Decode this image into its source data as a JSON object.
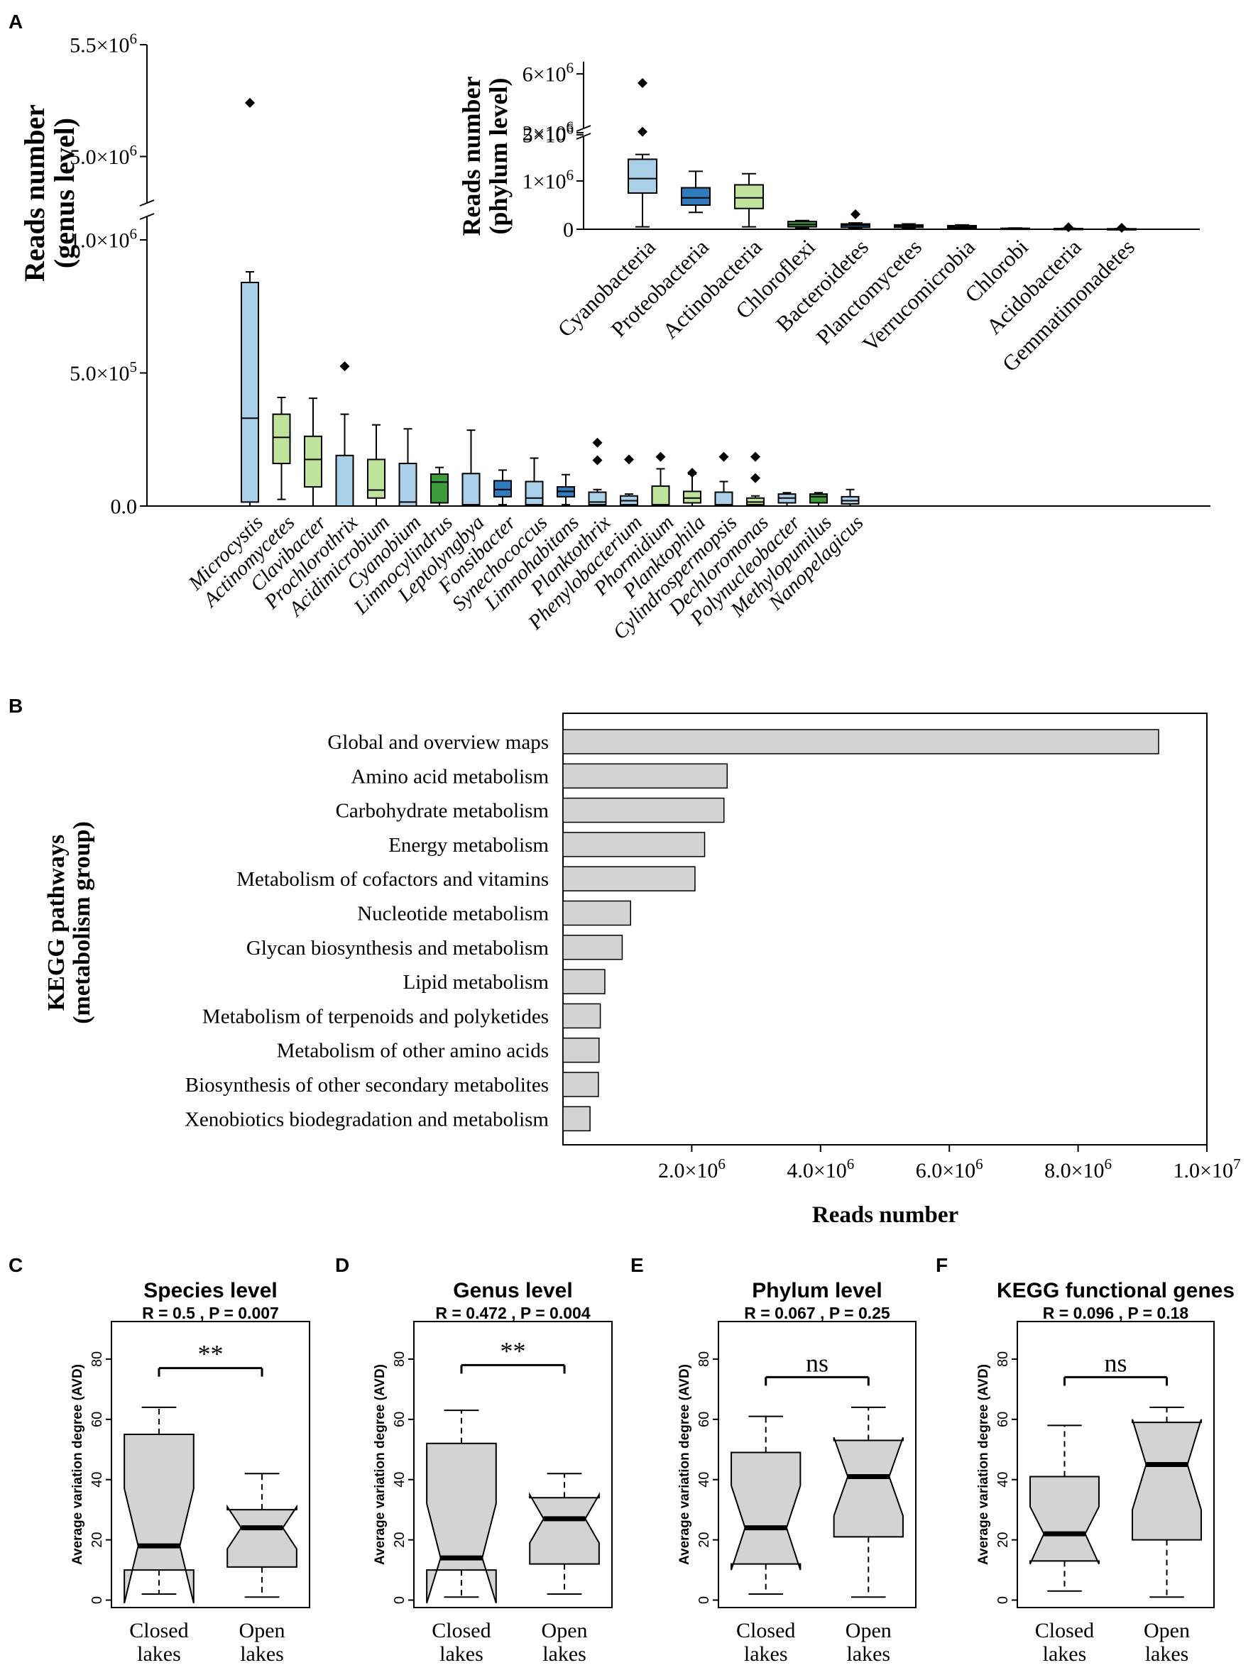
{
  "colors": {
    "light_blue": "#a9d0e8",
    "dark_blue": "#2f7bbd",
    "light_green": "#bfe39a",
    "dark_green": "#3c9c39",
    "kegg_bar": "#d3d3d3",
    "avd_box": "#d3d3d3"
  },
  "panel_letters": {
    "a": "A",
    "b": "B",
    "c": "C",
    "d": "D",
    "e": "E",
    "f": "F"
  },
  "chart_data": [
    {
      "id": "A_genus",
      "type": "box",
      "title": "",
      "ylabel_line1": "Reads number",
      "ylabel_line2": "(genus level)",
      "axis_break": true,
      "ylim_lower": [
        0,
        1000000
      ],
      "ylim_upper": [
        4900000,
        5500000
      ],
      "yticks": [
        {
          "value": 0,
          "label": "0.0",
          "seg": "lower"
        },
        {
          "value": 500000,
          "label": "5.0×10",
          "exp": "5",
          "seg": "lower"
        },
        {
          "value": 1000000,
          "label": "1.0×10",
          "exp": "6",
          "seg": "lower"
        },
        {
          "value": 5000000,
          "label": "5.0×10",
          "exp": "6",
          "seg": "upper"
        },
        {
          "value": 5500000,
          "label": "5.5×10",
          "exp": "6",
          "seg": "upper"
        }
      ],
      "boxes": [
        {
          "name": "Microcystis",
          "color": "light_blue",
          "min": 0,
          "q1": 15000,
          "median": 330000,
          "q3": 840000,
          "max": 880000,
          "outliers": [
            5240000
          ]
        },
        {
          "name": "Actinomycetes",
          "color": "light_green",
          "min": 25000,
          "q1": 160000,
          "median": 258000,
          "q3": 345000,
          "max": 408000,
          "outliers": []
        },
        {
          "name": "Clavibacter",
          "color": "light_green",
          "min": 0,
          "q1": 72000,
          "median": 175000,
          "q3": 262000,
          "max": 405000,
          "outliers": []
        },
        {
          "name": "Prochlorothrix",
          "color": "light_blue",
          "min": 0,
          "q1": 0,
          "median": 0,
          "q3": 190000,
          "max": 345000,
          "outliers": [
            525000
          ]
        },
        {
          "name": "Acidimicrobium",
          "color": "light_green",
          "min": 0,
          "q1": 30000,
          "median": 60000,
          "q3": 175000,
          "max": 305000,
          "outliers": []
        },
        {
          "name": "Cyanobium",
          "color": "light_blue",
          "min": 0,
          "q1": 0,
          "median": 15000,
          "q3": 160000,
          "max": 290000,
          "outliers": []
        },
        {
          "name": "Limnocylindrus",
          "color": "dark_green",
          "min": 0,
          "q1": 12000,
          "median": 90000,
          "q3": 120000,
          "max": 145000,
          "outliers": []
        },
        {
          "name": "Leptolyngbya",
          "color": "light_blue",
          "min": 0,
          "q1": 0,
          "median": 5000,
          "q3": 122000,
          "max": 285000,
          "outliers": []
        },
        {
          "name": "Fonsibacter",
          "color": "dark_blue",
          "min": 5000,
          "q1": 35000,
          "median": 62000,
          "q3": 95000,
          "max": 135000,
          "outliers": []
        },
        {
          "name": "Synechococcus",
          "color": "light_blue",
          "min": 0,
          "q1": 5000,
          "median": 30000,
          "q3": 92000,
          "max": 180000,
          "outliers": []
        },
        {
          "name": "Limnohabitans",
          "color": "dark_blue",
          "min": 5000,
          "q1": 35000,
          "median": 55000,
          "q3": 72000,
          "max": 118000,
          "outliers": []
        },
        {
          "name": "Planktothrix",
          "color": "light_blue",
          "min": 0,
          "q1": 5000,
          "median": 15000,
          "q3": 52000,
          "max": 62000,
          "outliers": [
            172000,
            238000
          ]
        },
        {
          "name": "Phenylobacterium",
          "color": "light_blue",
          "min": 0,
          "q1": 5000,
          "median": 20000,
          "q3": 38000,
          "max": 45000,
          "outliers": [
            175000
          ]
        },
        {
          "name": "Phormidium",
          "color": "light_green",
          "min": 0,
          "q1": 0,
          "median": 5000,
          "q3": 75000,
          "max": 140000,
          "outliers": [
            185000
          ]
        },
        {
          "name": "Planktophila",
          "color": "light_green",
          "min": 0,
          "q1": 12000,
          "median": 30000,
          "q3": 55000,
          "max": 120000,
          "outliers": [
            125000
          ]
        },
        {
          "name": "Cylindrospermopsis",
          "color": "light_blue",
          "min": 0,
          "q1": 0,
          "median": 5000,
          "q3": 52000,
          "max": 92000,
          "outliers": [
            185000
          ]
        },
        {
          "name": "Dechloromonas",
          "color": "light_green",
          "min": 0,
          "q1": 5000,
          "median": 15000,
          "q3": 30000,
          "max": 38000,
          "outliers": [
            105000,
            185000
          ]
        },
        {
          "name": "Polynucleobacter",
          "color": "light_blue",
          "min": 0,
          "q1": 12000,
          "median": 30000,
          "q3": 45000,
          "max": 50000,
          "outliers": []
        },
        {
          "name": "Methylopumilus",
          "color": "dark_green",
          "min": 0,
          "q1": 12000,
          "median": 35000,
          "q3": 45000,
          "max": 50000,
          "outliers": []
        },
        {
          "name": "Nanopelagicus",
          "color": "light_blue",
          "min": 0,
          "q1": 8000,
          "median": 20000,
          "q3": 35000,
          "max": 62000,
          "outliers": []
        }
      ]
    },
    {
      "id": "A_phylum_inset",
      "type": "box",
      "title": "",
      "ylabel_line1": "Reads number",
      "ylabel_line2": "(phylum level)",
      "axis_break": true,
      "ylim_lower": [
        0,
        2000000
      ],
      "ylim_upper": [
        4800000,
        6200000
      ],
      "yticks": [
        {
          "value": 0,
          "label": "0",
          "seg": "lower"
        },
        {
          "value": 1000000,
          "label": "1×10",
          "exp": "6",
          "seg": "lower"
        },
        {
          "value": 2000000,
          "label": "2×10",
          "exp": "6",
          "seg": "lower"
        },
        {
          "value": 5000000,
          "label": "5×10",
          "exp": "6",
          "seg": "upper"
        },
        {
          "value": 6000000,
          "label": "6×10",
          "exp": "6",
          "seg": "upper"
        }
      ],
      "boxes": [
        {
          "name": "Cyanobacteria",
          "color": "light_blue",
          "min": 50000,
          "q1": 750000,
          "median": 1050000,
          "q3": 1450000,
          "max": 1550000,
          "outliers": [
            5050000,
            5850000
          ]
        },
        {
          "name": "Proteobacteria",
          "color": "dark_blue",
          "min": 350000,
          "q1": 500000,
          "median": 650000,
          "q3": 860000,
          "max": 1200000,
          "outliers": []
        },
        {
          "name": "Actinobacteria",
          "color": "light_green",
          "min": 50000,
          "q1": 430000,
          "median": 650000,
          "q3": 920000,
          "max": 1150000,
          "outliers": []
        },
        {
          "name": "Chloroflexi",
          "color": "dark_green",
          "min": 20000,
          "q1": 50000,
          "median": 100000,
          "q3": 160000,
          "max": 180000,
          "outliers": []
        },
        {
          "name": "Bacteroidetes",
          "color": "dark_blue",
          "min": 20000,
          "q1": 40000,
          "median": 80000,
          "q3": 110000,
          "max": 130000,
          "outliers": [
            310000
          ]
        },
        {
          "name": "Planctomycetes",
          "color": "dark_blue",
          "min": 20000,
          "q1": 40000,
          "median": 70000,
          "q3": 90000,
          "max": 110000,
          "outliers": []
        },
        {
          "name": "Verrucomicrobia",
          "color": "dark_blue",
          "min": 10000,
          "q1": 30000,
          "median": 50000,
          "q3": 75000,
          "max": 90000,
          "outliers": []
        },
        {
          "name": "Chlorobi",
          "color": "dark_green",
          "min": 0,
          "q1": 0,
          "median": 10000,
          "q3": 20000,
          "max": 25000,
          "outliers": []
        },
        {
          "name": "Acidobacteria",
          "color": "dark_blue",
          "min": 0,
          "q1": 0,
          "median": 8000,
          "q3": 15000,
          "max": 20000,
          "outliers": [
            40000
          ]
        },
        {
          "name": "Gemmatimonadetes",
          "color": "dark_blue",
          "min": 0,
          "q1": 0,
          "median": 5000,
          "q3": 10000,
          "max": 15000,
          "outliers": [
            30000
          ]
        }
      ]
    },
    {
      "id": "B_kegg",
      "type": "bar",
      "orientation": "horizontal",
      "title": "",
      "ylabel_line1": "KEGG pathways",
      "ylabel_line2": "(metabolism group)",
      "xlabel": "Reads number",
      "xlim": [
        0,
        10000000
      ],
      "xticks": [
        {
          "value": 2000000,
          "label": "2.0×10",
          "exp": "6"
        },
        {
          "value": 4000000,
          "label": "4.0×10",
          "exp": "6"
        },
        {
          "value": 6000000,
          "label": "6.0×10",
          "exp": "6"
        },
        {
          "value": 8000000,
          "label": "8.0×10",
          "exp": "6"
        },
        {
          "value": 10000000,
          "label": "1.0×10",
          "exp": "7"
        }
      ],
      "categories": [
        "Global and overview maps",
        "Amino acid metabolism",
        "Carbohydrate metabolism",
        "Energy metabolism",
        "Metabolism of cofactors and vitamins",
        "Nucleotide metabolism",
        "Glycan biosynthesis and metabolism",
        "Lipid metabolism",
        "Metabolism of terpenoids and polyketides",
        "Metabolism of other amino acids",
        "Biosynthesis of other secondary metabolites",
        "Xenobiotics biodegradation and metabolism"
      ],
      "values": [
        9250000,
        2550000,
        2500000,
        2200000,
        2050000,
        1050000,
        920000,
        650000,
        580000,
        560000,
        550000,
        420000
      ]
    },
    {
      "id": "C_species",
      "type": "notched_box",
      "title": "Species level",
      "stats_text": "R =  0.5 ,  P =  0.007",
      "ylabel": "Average variation degree (AVD)",
      "ylim": [
        -2,
        92
      ],
      "yticks": [
        0,
        20,
        40,
        60,
        80
      ],
      "significance": "**",
      "sig_y": 77,
      "groups": [
        {
          "label1": "Closed",
          "label2": "lakes",
          "min": 2,
          "q1": 10,
          "median": 18,
          "q3": 55,
          "max": 64,
          "notch_lo": -1,
          "notch_hi": 37
        },
        {
          "label1": "Open",
          "label2": "lakes",
          "min": 1,
          "q1": 11,
          "median": 24,
          "q3": 30,
          "max": 42,
          "notch_lo": 17,
          "notch_hi": 31
        }
      ]
    },
    {
      "id": "D_genus",
      "type": "notched_box",
      "title": "Genus level",
      "stats_text": "R =  0.472 ,  P =  0.004",
      "ylabel": "Average variation degree (AVD)",
      "ylim": [
        -2,
        92
      ],
      "yticks": [
        0,
        20,
        40,
        60,
        80
      ],
      "significance": "**",
      "sig_y": 78,
      "groups": [
        {
          "label1": "Closed",
          "label2": "lakes",
          "min": 1,
          "q1": 10,
          "median": 14,
          "q3": 52,
          "max": 63,
          "notch_lo": -1,
          "notch_hi": 32
        },
        {
          "label1": "Open",
          "label2": "lakes",
          "min": 2,
          "q1": 12,
          "median": 27,
          "q3": 34,
          "max": 42,
          "notch_lo": 19,
          "notch_hi": 35
        }
      ]
    },
    {
      "id": "E_phylum",
      "type": "notched_box",
      "title": "Phylum level",
      "stats_text": "R =  0.067 ,  P =  0.25",
      "ylabel": "Average variation degree (AVD)",
      "ylim": [
        -2,
        92
      ],
      "yticks": [
        0,
        20,
        40,
        60,
        80
      ],
      "significance": "ns",
      "sig_y": 74,
      "groups": [
        {
          "label1": "Closed",
          "label2": "lakes",
          "min": 2,
          "q1": 12,
          "median": 24,
          "q3": 49,
          "max": 61,
          "notch_lo": 10,
          "notch_hi": 38
        },
        {
          "label1": "Open",
          "label2": "lakes",
          "min": 1,
          "q1": 21,
          "median": 41,
          "q3": 53,
          "max": 64,
          "notch_lo": 28,
          "notch_hi": 54
        }
      ]
    },
    {
      "id": "F_kegg",
      "type": "notched_box",
      "title": "KEGG functional genes",
      "stats_text": "R =  0.096 ,  P =  0.18",
      "ylabel": "Average variation degree (AVD)",
      "ylim": [
        -2,
        92
      ],
      "yticks": [
        0,
        20,
        40,
        60,
        80
      ],
      "significance": "ns",
      "sig_y": 74,
      "groups": [
        {
          "label1": "Closed",
          "label2": "lakes",
          "min": 3,
          "q1": 13,
          "median": 22,
          "q3": 41,
          "max": 58,
          "notch_lo": 12,
          "notch_hi": 31
        },
        {
          "label1": "Open",
          "label2": "lakes",
          "min": 1,
          "q1": 20,
          "median": 45,
          "q3": 59,
          "max": 64,
          "notch_lo": 30,
          "notch_hi": 60
        }
      ]
    }
  ]
}
